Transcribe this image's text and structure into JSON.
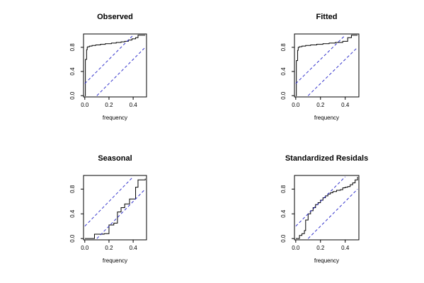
{
  "chart_data": [
    {
      "type": "line",
      "title": "Observed",
      "xlabel": "frequency",
      "ylabel": "",
      "xlim": [
        0,
        0.5
      ],
      "ylim": [
        0,
        1
      ],
      "xticks": [
        0.0,
        0.2,
        0.4
      ],
      "xtick_labels": [
        "0.0",
        "0.2",
        "0.4"
      ],
      "yticks": [
        0.0,
        0.4,
        0.8
      ],
      "ytick_labels": [
        "0.0",
        "0.4",
        "0.8"
      ],
      "grid": false,
      "series": [
        {
          "style": "step",
          "color": "#000000",
          "x": [
            0.0,
            0.005,
            0.01,
            0.015,
            0.02,
            0.025,
            0.04,
            0.06,
            0.09,
            0.13,
            0.17,
            0.22,
            0.26,
            0.3,
            0.33,
            0.36,
            0.39,
            0.42,
            0.44,
            0.5
          ],
          "y": [
            0.0,
            0.6,
            0.6,
            0.76,
            0.8,
            0.81,
            0.82,
            0.83,
            0.84,
            0.85,
            0.86,
            0.87,
            0.88,
            0.89,
            0.9,
            0.92,
            0.94,
            0.96,
            1.0,
            1.0
          ]
        },
        {
          "style": "dashed",
          "color": "#3333cc",
          "x": [
            0,
            0.4
          ],
          "y": [
            0.2,
            1.0
          ]
        },
        {
          "style": "dashed",
          "color": "#3333cc",
          "x": [
            0.1,
            0.5
          ],
          "y": [
            0.0,
            0.8
          ]
        }
      ]
    },
    {
      "type": "line",
      "title": "Fitted",
      "xlabel": "frequency",
      "ylabel": "",
      "xlim": [
        0,
        0.5
      ],
      "ylim": [
        0,
        1
      ],
      "xticks": [
        0.0,
        0.2,
        0.4
      ],
      "xtick_labels": [
        "0.0",
        "0.2",
        "0.4"
      ],
      "yticks": [
        0.0,
        0.4,
        0.8
      ],
      "ytick_labels": [
        "0.0",
        "0.4",
        "0.8"
      ],
      "grid": false,
      "series": [
        {
          "style": "step",
          "color": "#000000",
          "x": [
            0.0,
            0.005,
            0.01,
            0.015,
            0.02,
            0.03,
            0.05,
            0.08,
            0.12,
            0.17,
            0.22,
            0.27,
            0.32,
            0.38,
            0.42,
            0.45,
            0.5
          ],
          "y": [
            0.0,
            0.58,
            0.58,
            0.75,
            0.8,
            0.81,
            0.82,
            0.83,
            0.84,
            0.85,
            0.86,
            0.87,
            0.88,
            0.9,
            0.96,
            1.0,
            1.0
          ]
        },
        {
          "style": "dashed",
          "color": "#3333cc",
          "x": [
            0,
            0.4
          ],
          "y": [
            0.2,
            1.0
          ]
        },
        {
          "style": "dashed",
          "color": "#3333cc",
          "x": [
            0.1,
            0.5
          ],
          "y": [
            0.0,
            0.8
          ]
        }
      ]
    },
    {
      "type": "line",
      "title": "Seasonal",
      "xlabel": "frequency",
      "ylabel": "",
      "xlim": [
        0,
        0.5
      ],
      "ylim": [
        0,
        1
      ],
      "xticks": [
        0.0,
        0.2,
        0.4
      ],
      "xtick_labels": [
        "0.0",
        "0.2",
        "0.4"
      ],
      "yticks": [
        0.0,
        0.4,
        0.8
      ],
      "ytick_labels": [
        "0.0",
        "0.4",
        "0.8"
      ],
      "grid": false,
      "series": [
        {
          "style": "step",
          "color": "#000000",
          "x": [
            0.0,
            0.08,
            0.16,
            0.2,
            0.24,
            0.27,
            0.3,
            0.33,
            0.37,
            0.42,
            0.44,
            0.5
          ],
          "y": [
            0.0,
            0.07,
            0.08,
            0.22,
            0.25,
            0.43,
            0.5,
            0.56,
            0.64,
            0.83,
            0.95,
            0.97
          ]
        },
        {
          "style": "dashed",
          "color": "#3333cc",
          "x": [
            0,
            0.4
          ],
          "y": [
            0.2,
            1.0
          ]
        },
        {
          "style": "dashed",
          "color": "#3333cc",
          "x": [
            0.1,
            0.5
          ],
          "y": [
            0.0,
            0.8
          ]
        }
      ]
    },
    {
      "type": "line",
      "title": "Standardized Residals",
      "xlabel": "frequency",
      "ylabel": "",
      "xlim": [
        0,
        0.5
      ],
      "ylim": [
        0,
        1
      ],
      "xticks": [
        0.0,
        0.2,
        0.4
      ],
      "xtick_labels": [
        "0.0",
        "0.2",
        "0.4"
      ],
      "yticks": [
        0.0,
        0.4,
        0.8
      ],
      "ytick_labels": [
        "0.0",
        "0.4",
        "0.8"
      ],
      "grid": false,
      "series": [
        {
          "style": "step",
          "color": "#000000",
          "x": [
            0.0,
            0.03,
            0.05,
            0.07,
            0.08,
            0.1,
            0.12,
            0.14,
            0.16,
            0.18,
            0.2,
            0.22,
            0.24,
            0.26,
            0.28,
            0.3,
            0.33,
            0.36,
            0.38,
            0.4,
            0.42,
            0.44,
            0.46,
            0.48,
            0.5
          ],
          "y": [
            0.0,
            0.05,
            0.08,
            0.13,
            0.3,
            0.4,
            0.45,
            0.5,
            0.55,
            0.58,
            0.62,
            0.66,
            0.69,
            0.72,
            0.74,
            0.76,
            0.78,
            0.79,
            0.82,
            0.83,
            0.84,
            0.87,
            0.9,
            0.95,
            1.0
          ]
        },
        {
          "style": "dashed",
          "color": "#3333cc",
          "x": [
            0,
            0.4
          ],
          "y": [
            0.2,
            1.0
          ]
        },
        {
          "style": "dashed",
          "color": "#3333cc",
          "x": [
            0.1,
            0.5
          ],
          "y": [
            0.0,
            0.8
          ]
        }
      ]
    }
  ]
}
